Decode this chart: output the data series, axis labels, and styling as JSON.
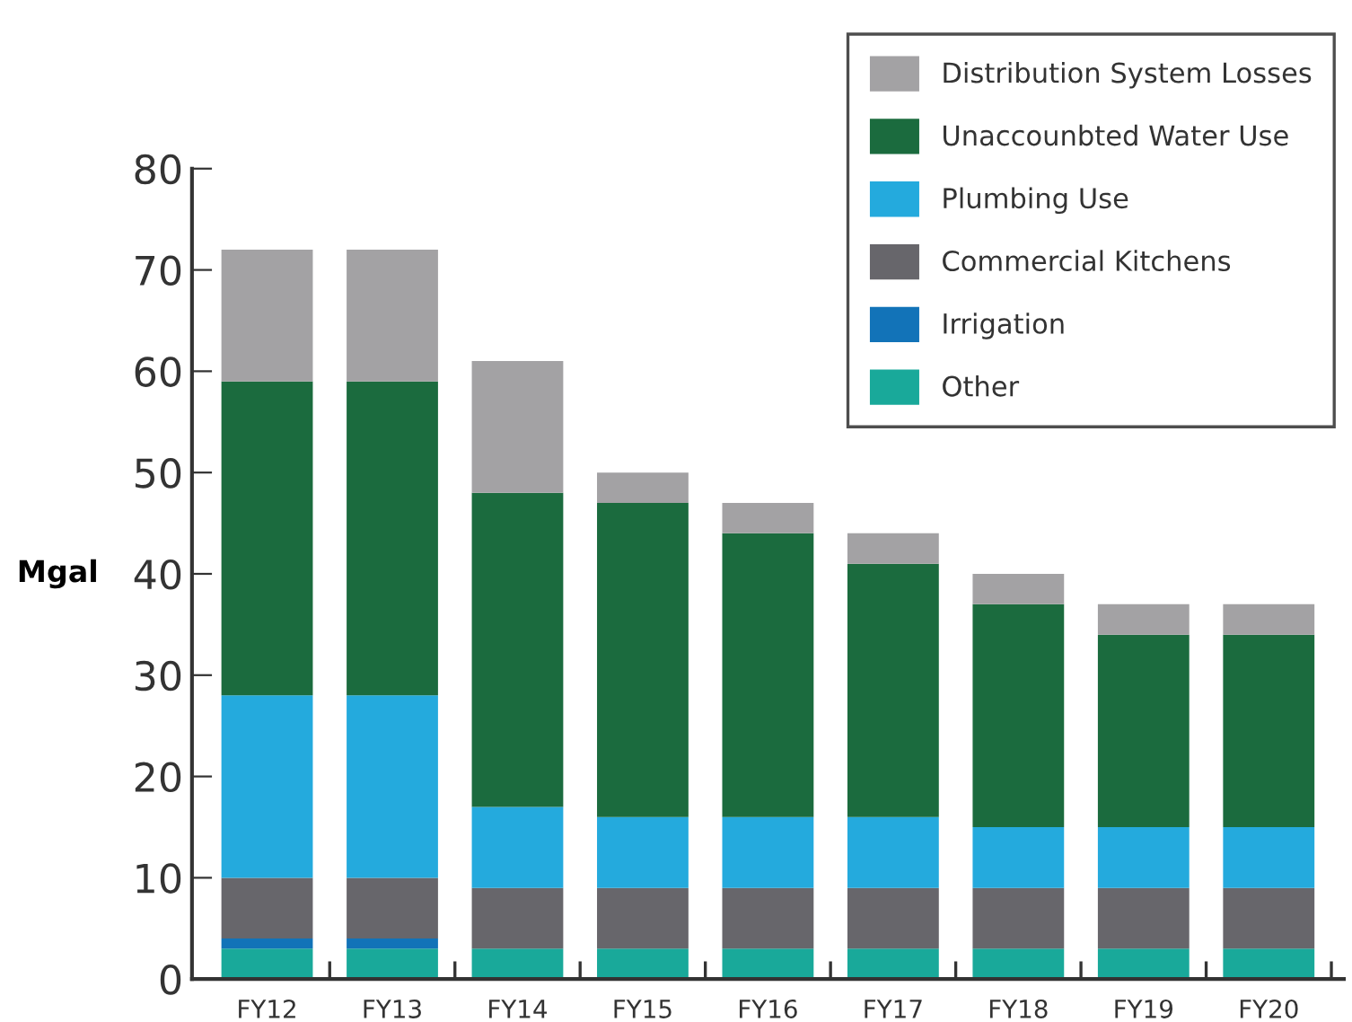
{
  "chart_data": {
    "type": "bar",
    "stacked": true,
    "ylabel": "Mgal",
    "categories": [
      "FY12",
      "FY13",
      "FY14",
      "FY15",
      "FY16",
      "FY17",
      "FY18",
      "FY19",
      "FY20"
    ],
    "series": [
      {
        "name": "Other",
        "color": "#19a99a",
        "values": [
          3,
          3,
          3,
          3,
          3,
          3,
          3,
          3,
          3
        ]
      },
      {
        "name": "Irrigation",
        "color": "#1273b8",
        "values": [
          1,
          1,
          0,
          0,
          0,
          0,
          0,
          0,
          0
        ]
      },
      {
        "name": "Commercial Kitchens",
        "color": "#67666b",
        "values": [
          6,
          6,
          6,
          6,
          6,
          6,
          6,
          6,
          6
        ]
      },
      {
        "name": "Plumbing Use",
        "color": "#24aadd",
        "values": [
          18,
          18,
          8,
          7,
          7,
          7,
          6,
          6,
          6
        ]
      },
      {
        "name": "Unaccounbted Water Use",
        "color": "#1b6b3e",
        "values": [
          31,
          31,
          31,
          31,
          28,
          25,
          22,
          19,
          19
        ]
      },
      {
        "name": "Distribution System Losses",
        "color": "#a3a2a4",
        "values": [
          13,
          13,
          13,
          3,
          3,
          3,
          3,
          3,
          3
        ]
      }
    ],
    "ylim": [
      0,
      80
    ],
    "yticks": [
      0,
      10,
      20,
      30,
      40,
      50,
      60,
      70,
      80
    ],
    "grid": false,
    "legend": "top right"
  }
}
